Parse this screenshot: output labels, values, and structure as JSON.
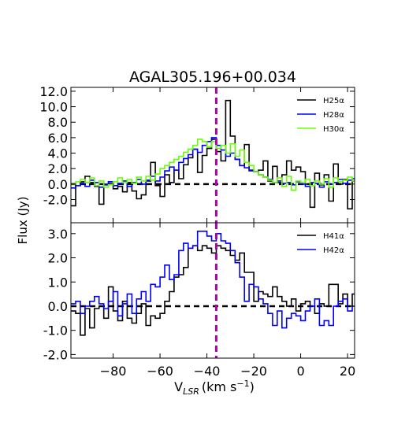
{
  "figure": {
    "title": "AGAL305.196+00.034",
    "xlabel_main": "V",
    "xlabel_sub": "LSR",
    "xlabel_unit": "(km s",
    "xlabel_exp": "−1",
    "xlabel_close": ")",
    "ylabel": "Flux (Jy)"
  },
  "chart_data": [
    {
      "type": "line",
      "step": true,
      "panel": "top",
      "xlim": [
        -98,
        23
      ],
      "ylim": [
        -5,
        12.5
      ],
      "xticks": [
        -80,
        -60,
        -40,
        -20,
        0,
        20
      ],
      "yticks": [
        -2,
        0,
        2,
        4,
        6,
        8,
        10,
        12
      ],
      "ytick_labels": [
        "-2.0",
        "0.0",
        "2.0",
        "4.0",
        "6.0",
        "8.0",
        "10.0",
        "12.0"
      ],
      "zero_line": 0,
      "marker_velocity": -36,
      "legend_position": "top-right",
      "series": [
        {
          "name": "H25α",
          "color": "#000000",
          "x": [
            -98,
            -96,
            -94,
            -92,
            -90,
            -88,
            -86,
            -84,
            -82,
            -80,
            -78,
            -76,
            -74,
            -72,
            -70,
            -68,
            -66,
            -64,
            -62,
            -60,
            -58,
            -56,
            -54,
            -52,
            -50,
            -48,
            -46,
            -44,
            -42,
            -40,
            -38,
            -36,
            -34,
            -32,
            -30,
            -28,
            -26,
            -24,
            -22,
            -20,
            -18,
            -16,
            -14,
            -12,
            -10,
            -8,
            -6,
            -4,
            -2,
            0,
            2,
            4,
            6,
            8,
            10,
            12,
            14,
            16,
            18,
            20,
            22
          ],
          "y": [
            -2.8,
            -0.2,
            0.3,
            1.0,
            0.2,
            -0.3,
            -2.6,
            -0.1,
            0.3,
            -0.6,
            -0.3,
            -1.0,
            0.2,
            -0.9,
            -1.9,
            -1.4,
            0.4,
            2.8,
            -0.2,
            -1.6,
            1.2,
            0.2,
            1.8,
            0.7,
            2.5,
            3.4,
            4.5,
            1.5,
            3.7,
            4.6,
            5.8,
            4.2,
            3.0,
            10.8,
            6.2,
            3.2,
            2.4,
            5.1,
            1.8,
            1.6,
            1.8,
            3.0,
            0.4,
            2.3,
            0.2,
            1.2,
            3.0,
            1.8,
            2.2,
            1.6,
            0.0,
            -3.0,
            1.4,
            -0.1,
            1.2,
            -2.2,
            2.6,
            0.0,
            0.6,
            -3.2,
            0.4
          ]
        },
        {
          "name": "H28α",
          "color": "#0000ff",
          "x": [
            -98,
            -96,
            -94,
            -92,
            -90,
            -88,
            -86,
            -84,
            -82,
            -80,
            -78,
            -76,
            -74,
            -72,
            -70,
            -68,
            -66,
            -64,
            -62,
            -60,
            -58,
            -56,
            -54,
            -52,
            -50,
            -48,
            -46,
            -44,
            -42,
            -40,
            -38,
            -36,
            -34,
            -32,
            -30,
            -28,
            -26,
            -24,
            -22,
            -20,
            -18,
            -16,
            -14,
            -12,
            -10,
            -8,
            -6,
            -4,
            -2,
            0,
            2,
            4,
            6,
            8,
            10,
            12,
            14,
            16,
            18,
            20,
            22
          ],
          "y": [
            -0.5,
            -0.2,
            0.1,
            -0.3,
            0.5,
            0.2,
            -0.4,
            0.0,
            0.3,
            -0.2,
            0.1,
            0.4,
            -0.3,
            0.2,
            0.6,
            0.0,
            0.5,
            1.0,
            0.4,
            0.9,
            1.7,
            2.2,
            1.8,
            2.8,
            3.3,
            3.8,
            4.5,
            4.1,
            5.0,
            5.5,
            6.0,
            5.0,
            4.4,
            3.6,
            4.0,
            3.2,
            2.4,
            2.1,
            1.7,
            1.6,
            1.2,
            0.9,
            0.6,
            0.2,
            0.4,
            0.1,
            0.2,
            -0.1,
            0.3,
            0.0,
            -0.3,
            0.2,
            0.1,
            -0.4,
            0.3,
            0.0,
            0.2,
            0.6,
            0.1,
            0.5,
            0.7
          ]
        },
        {
          "name": "H30α",
          "color": "#66ff00",
          "x": [
            -98,
            -96,
            -94,
            -92,
            -90,
            -88,
            -86,
            -84,
            -82,
            -80,
            -78,
            -76,
            -74,
            -72,
            -70,
            -68,
            -66,
            -64,
            -62,
            -60,
            -58,
            -56,
            -54,
            -52,
            -50,
            -48,
            -46,
            -44,
            -42,
            -40,
            -38,
            -36,
            -34,
            -32,
            -30,
            -28,
            -26,
            -24,
            -22,
            -20,
            -18,
            -16,
            -14,
            -12,
            -10,
            -8,
            -6,
            -4,
            -2,
            0,
            2,
            4,
            6,
            8,
            10,
            12,
            14,
            16,
            18,
            20,
            22
          ],
          "y": [
            0.0,
            0.3,
            0.6,
            0.2,
            0.8,
            -0.2,
            0.4,
            -0.4,
            -0.1,
            0.3,
            0.8,
            0.2,
            0.6,
            0.1,
            0.9,
            0.4,
            1.0,
            0.5,
            1.3,
            2.0,
            2.4,
            2.8,
            3.2,
            3.6,
            4.1,
            4.5,
            5.0,
            5.8,
            5.5,
            4.8,
            5.5,
            4.6,
            5.0,
            4.0,
            5.2,
            3.6,
            4.4,
            2.8,
            2.4,
            1.6,
            1.2,
            0.9,
            0.5,
            0.2,
            0.8,
            -0.3,
            1.0,
            -0.8,
            0.4,
            0.2,
            0.6,
            -0.2,
            0.4,
            0.0,
            0.7,
            -0.4,
            0.8,
            0.3,
            0.5,
            0.9,
            0.4
          ]
        }
      ]
    },
    {
      "type": "line",
      "step": true,
      "panel": "bottom",
      "xlim": [
        -98,
        23
      ],
      "ylim": [
        -2.15,
        3.45
      ],
      "xticks": [
        -80,
        -60,
        -40,
        -20,
        0,
        20
      ],
      "xtick_labels": [
        "−80",
        "−60",
        "−40",
        "−20",
        "0",
        "20"
      ],
      "yticks": [
        -2,
        -1,
        0,
        1,
        2,
        3
      ],
      "ytick_labels": [
        "-2.0",
        "-1.0",
        "0.0",
        "1.0",
        "2.0",
        "3.0"
      ],
      "zero_line": 0,
      "marker_velocity": -36,
      "legend_position": "top-right",
      "series": [
        {
          "name": "H41α",
          "color": "#000000",
          "x": [
            -98,
            -96,
            -94,
            -92,
            -90,
            -88,
            -86,
            -84,
            -82,
            -80,
            -78,
            -76,
            -74,
            -72,
            -70,
            -68,
            -66,
            -64,
            -62,
            -60,
            -58,
            -56,
            -54,
            -52,
            -50,
            -48,
            -46,
            -44,
            -42,
            -40,
            -38,
            -36,
            -34,
            -32,
            -30,
            -28,
            -26,
            -24,
            -22,
            -20,
            -18,
            -16,
            -14,
            -12,
            -10,
            -8,
            -6,
            -4,
            -2,
            0,
            2,
            4,
            6,
            8,
            10,
            12,
            14,
            16,
            18,
            20,
            22
          ],
          "y": [
            -0.2,
            -0.3,
            -1.2,
            -0.1,
            -0.9,
            -0.1,
            0.0,
            -0.5,
            0.8,
            -0.2,
            -0.6,
            0.2,
            -0.5,
            -0.7,
            -0.3,
            0.1,
            -0.8,
            -0.4,
            -0.5,
            -0.3,
            0.2,
            0.6,
            1.2,
            1.3,
            1.6,
            2.4,
            2.5,
            2.3,
            2.5,
            2.4,
            2.2,
            2.5,
            2.4,
            2.3,
            2.1,
            1.9,
            2.2,
            1.4,
            1.4,
            0.2,
            0.6,
            0.5,
            0.4,
            0.8,
            0.4,
            0.2,
            0.0,
            0.3,
            -0.2,
            0.1,
            0.2,
            0.0,
            -0.3,
            0.1,
            0.0,
            0.9,
            0.9,
            0.1,
            0.5,
            0.0,
            0.5
          ]
        },
        {
          "name": "H42α",
          "color": "#0000ff",
          "x": [
            -98,
            -96,
            -94,
            -92,
            -90,
            -88,
            -86,
            -84,
            -82,
            -80,
            -78,
            -76,
            -74,
            -72,
            -70,
            -68,
            -66,
            -64,
            -62,
            -60,
            -58,
            -56,
            -54,
            -52,
            -50,
            -48,
            -46,
            -44,
            -42,
            -40,
            -38,
            -36,
            -34,
            -32,
            -30,
            -28,
            -26,
            -24,
            -22,
            -20,
            -18,
            -16,
            -14,
            -12,
            -10,
            -8,
            -6,
            -4,
            -2,
            0,
            2,
            4,
            6,
            8,
            10,
            12,
            14,
            16,
            18,
            20,
            22
          ],
          "y": [
            0.1,
            0.2,
            -0.3,
            0.0,
            0.2,
            0.4,
            0.1,
            -0.1,
            0.2,
            0.6,
            -0.4,
            0.1,
            0.5,
            -0.3,
            0.3,
            0.6,
            0.2,
            0.9,
            0.8,
            1.2,
            1.7,
            1.1,
            1.3,
            2.3,
            2.6,
            2.4,
            2.5,
            3.1,
            3.1,
            2.9,
            2.7,
            3.0,
            2.7,
            2.6,
            2.3,
            1.8,
            1.2,
            0.2,
            0.9,
            0.8,
            0.3,
            0.1,
            -0.3,
            -0.8,
            -0.2,
            -0.9,
            -0.5,
            -0.3,
            -0.4,
            -0.6,
            -0.2,
            0.0,
            0.3,
            -0.8,
            -0.6,
            -0.8,
            0.0,
            0.2,
            0.3,
            -0.2,
            0.0
          ]
        }
      ]
    }
  ]
}
